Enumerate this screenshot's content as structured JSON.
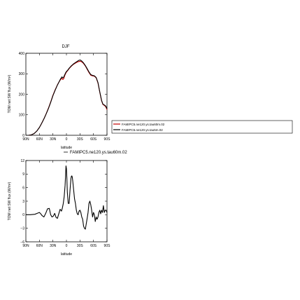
{
  "figure": {
    "background": "#ffffff"
  },
  "chart_data": [
    {
      "type": "line",
      "title": "DJF",
      "xlabel": "latitude",
      "ylabel": "TOM net SW flux (W/m²)",
      "xlim": [
        -90,
        90
      ],
      "ylim": [
        0,
        400
      ],
      "x_ticks": [
        -90,
        -60,
        -30,
        0,
        30,
        60,
        90
      ],
      "x_tick_labels": [
        "90N",
        "60N",
        "30N",
        "0",
        "30S",
        "60S",
        "90S"
      ],
      "y_ticks": [
        0,
        100,
        200,
        300,
        400
      ],
      "y_tick_labels": [
        "0",
        "100",
        "200",
        "300",
        "400"
      ],
      "grid": false,
      "legend_position": "right",
      "series": [
        {
          "name": "FAMIPC5.ne120.ys.tau60m.02",
          "color": "#c00000",
          "x": [
            -90,
            -84,
            -78,
            -72,
            -66,
            -60,
            -55,
            -50,
            -45,
            -40,
            -35,
            -30,
            -25,
            -20,
            -16,
            -13,
            -10,
            -8,
            -6,
            -4,
            -2,
            0,
            3,
            6,
            10,
            15,
            20,
            25,
            28,
            31,
            34,
            38,
            42,
            46,
            50,
            54,
            58,
            62,
            66,
            70,
            74,
            78,
            81,
            84,
            87,
            90
          ],
          "y": [
            0,
            0,
            2,
            8,
            20,
            38,
            58,
            80,
            105,
            132,
            162,
            195,
            222,
            246,
            262,
            272,
            278,
            272,
            276,
            290,
            300,
            308,
            316,
            325,
            335,
            345,
            352,
            358,
            360,
            361,
            358,
            350,
            338,
            322,
            306,
            293,
            290,
            288,
            280,
            255,
            210,
            168,
            150,
            146,
            140,
            125
          ]
        },
        {
          "name": "FAMIPC5.ne120.ys.tau5m.02",
          "color": "#000000",
          "x": [
            -90,
            -84,
            -78,
            -72,
            -66,
            -60,
            -55,
            -50,
            -45,
            -40,
            -35,
            -30,
            -25,
            -20,
            -16,
            -13,
            -10,
            -8,
            -6,
            -4,
            -2,
            0,
            3,
            6,
            10,
            15,
            20,
            25,
            28,
            31,
            34,
            38,
            42,
            46,
            50,
            54,
            58,
            62,
            66,
            70,
            74,
            78,
            81,
            84,
            87,
            90
          ],
          "y": [
            0,
            0,
            2,
            8,
            20,
            38,
            58,
            80,
            104,
            130,
            160,
            193,
            220,
            245,
            262,
            275,
            285,
            280,
            284,
            294,
            304,
            311,
            318,
            327,
            337,
            347,
            355,
            362,
            366,
            367,
            362,
            353,
            340,
            325,
            309,
            296,
            292,
            290,
            282,
            257,
            212,
            170,
            152,
            148,
            143,
            130
          ]
        }
      ]
    },
    {
      "type": "line",
      "title": "",
      "xlabel": "latitude",
      "ylabel": "TOM net SW flux (W/m²)",
      "xlim": [
        -90,
        90
      ],
      "ylim": [
        -6,
        12
      ],
      "x_ticks": [
        -90,
        -60,
        -30,
        0,
        30,
        60,
        90
      ],
      "x_tick_labels": [
        "90N",
        "60N",
        "30N",
        "0",
        "30S",
        "60S",
        "90S"
      ],
      "y_ticks": [
        -6,
        -3,
        0,
        3,
        6,
        9,
        12
      ],
      "y_tick_labels": [
        "−6",
        "−3",
        "0",
        "3",
        "6",
        "9",
        "12"
      ],
      "grid": false,
      "legend_position": "top",
      "series": [
        {
          "name": "FAMIPC5.ne120.ys.tau60m.02",
          "color": "#000000",
          "x": [
            -90,
            -80,
            -70,
            -65,
            -60,
            -57,
            -54,
            -50,
            -46,
            -42,
            -38,
            -35,
            -32,
            -29,
            -26,
            -23,
            -20,
            -17,
            -14,
            -11,
            -9,
            -7,
            -5,
            -3,
            -2,
            -1,
            0,
            1,
            2,
            4,
            6,
            8,
            10,
            11,
            12,
            13,
            14,
            16,
            18,
            20,
            22,
            24,
            26,
            28,
            30,
            32,
            34,
            36,
            38,
            40,
            42,
            44,
            46,
            48,
            50,
            52,
            54,
            56,
            58,
            60,
            62,
            64,
            66,
            68,
            70,
            72,
            74,
            76,
            78,
            80,
            82,
            84,
            86,
            88,
            90
          ],
          "y": [
            0,
            0,
            0.1,
            0.3,
            0.5,
            0.2,
            -0.2,
            -0.5,
            0.3,
            1.3,
            1.4,
            0,
            -0.5,
            -0.3,
            0.3,
            -0.6,
            -0.8,
            0.2,
            1.2,
            0.8,
            1.5,
            2.5,
            4.0,
            6.5,
            8.5,
            10.8,
            10.2,
            8.0,
            5.0,
            2.5,
            2.5,
            5.5,
            8.0,
            8.5,
            8.6,
            8.3,
            7.5,
            5.5,
            3.5,
            2.5,
            1.0,
            0.2,
            0,
            0.8,
            1.0,
            0.5,
            -0.5,
            -1.0,
            -2.5,
            -3.0,
            -3.2,
            -2.0,
            -0.8,
            0.5,
            2.5,
            3.0,
            2.2,
            1.0,
            -0.5,
            0.5,
            0,
            -1.5,
            -0.5,
            -1.0,
            -0.5,
            0.5,
            1.0,
            0.2,
            1.0,
            0.5,
            2.0,
            0.5,
            1.0,
            1.0,
            0.5
          ]
        }
      ]
    }
  ]
}
